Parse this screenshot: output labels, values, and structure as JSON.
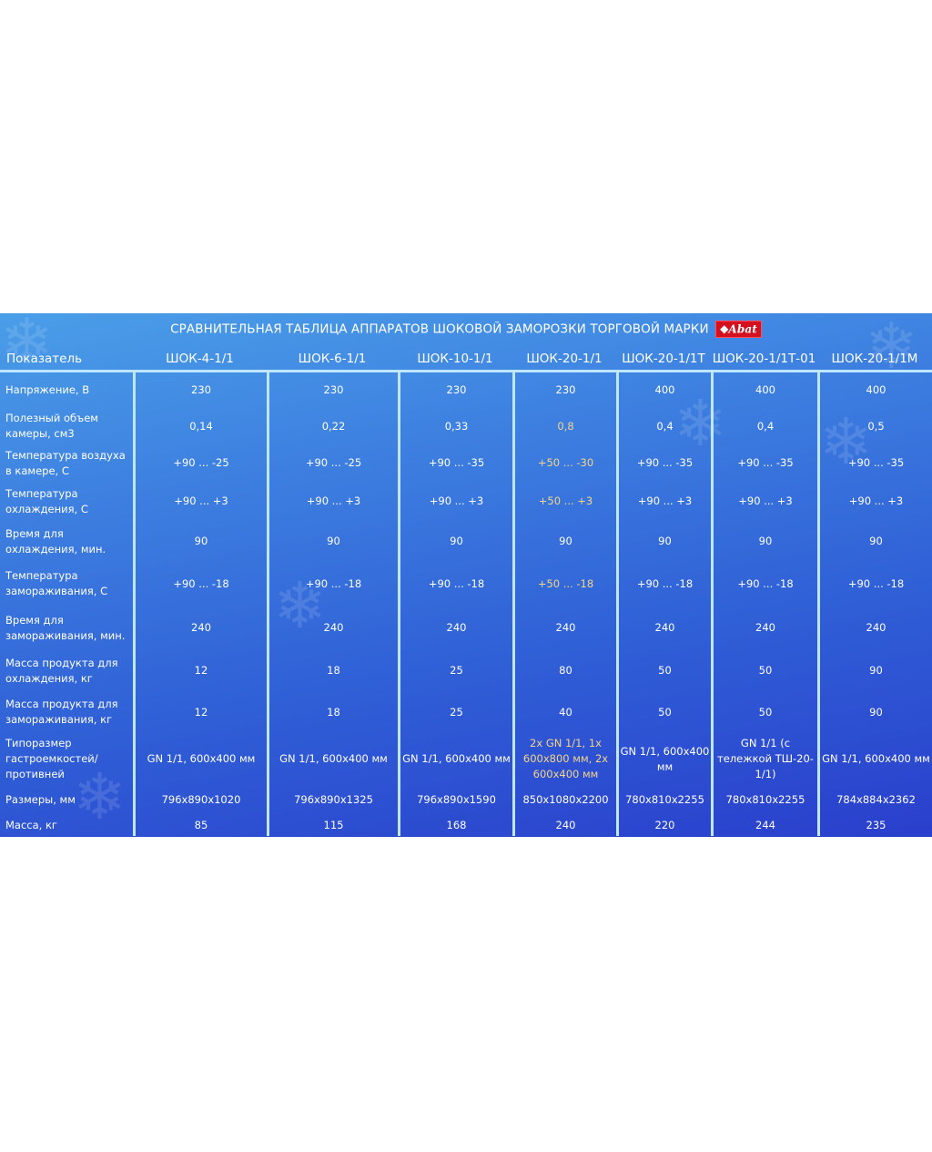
{
  "title": "СРАВНИТЕЛЬНАЯ ТАБЛИЦА АППАРАТОВ ШОКОВОЙ ЗАМОРОЗКИ ТОРГОВОЙ МАРКИ",
  "logo_text": "Abat",
  "colors": {
    "background": "#3d7fe0",
    "divider": "#bfe6ff",
    "highlight": "#f3d58a",
    "logo": "#d4101e"
  },
  "header": [
    "Показатель",
    "ШОК-4-1/1",
    "ШОК-6-1/1",
    "ШОК-10-1/1",
    "ШОК-20-1/1",
    "ШОК-20-1/1Т",
    "ШОК-20-1/1Т-01",
    "ШОК-20-1/1М"
  ],
  "rows": [
    {
      "label": "Напряжение, В",
      "values": [
        "230",
        "230",
        "230",
        "230",
        "400",
        "400",
        "400"
      ]
    },
    {
      "label": "Полезный объем камеры, см3",
      "values": [
        "0,14",
        "0,22",
        "0,33",
        "0,8",
        "0,4",
        "0,4",
        "0,5"
      ],
      "highlight": [
        3
      ]
    },
    {
      "label": "Температура воздуха в камере, С",
      "values": [
        "+90 ... -25",
        "+90 ... -25",
        "+90 ... -35",
        "+50 ... -30",
        "+90 ... -35",
        "+90 ... -35",
        "+90 ... -35"
      ],
      "highlight": [
        3
      ]
    },
    {
      "label": "Температура охлаждения, С",
      "values": [
        "+90 ... +3",
        "+90 ... +3",
        "+90 ... +3",
        "+50 ... +3",
        "+90 ... +3",
        "+90 ... +3",
        "+90 ... +3"
      ],
      "highlight": [
        3
      ]
    },
    {
      "label": "Время для охлаждения, мин.",
      "values": [
        "90",
        "90",
        "90",
        "90",
        "90",
        "90",
        "90"
      ]
    },
    {
      "label": "Температура замораживания, С",
      "values": [
        "+90 ... -18",
        "+90 ... -18",
        "+90 ... -18",
        "+50 ... -18",
        "+90 ... -18",
        "+90 ... -18",
        "+90 ... -18"
      ],
      "highlight": [
        3
      ]
    },
    {
      "label": "Время для замораживания, мин.",
      "values": [
        "240",
        "240",
        "240",
        "240",
        "240",
        "240",
        "240"
      ]
    },
    {
      "label": "Масса продукта для охлаждения, кг",
      "values": [
        "12",
        "18",
        "25",
        "80",
        "50",
        "50",
        "90"
      ]
    },
    {
      "label": "Масса продукта для замораживания, кг",
      "values": [
        "12",
        "18",
        "25",
        "40",
        "50",
        "50",
        "90"
      ]
    },
    {
      "label": "Типоразмер гастроемкостей/ противней",
      "values": [
        "GN 1/1, 600x400 мм",
        "GN 1/1, 600x400 мм",
        "GN 1/1, 600x400 мм",
        "2x GN 1/1, 1x 600x800 мм, 2x 600x400 мм",
        "GN 1/1, 600x400 мм",
        "GN 1/1 (с тележкой ТШ-20-1/1)",
        "GN 1/1, 600x400 мм"
      ],
      "highlight": [
        3
      ]
    },
    {
      "label": "Размеры, мм",
      "values": [
        "796x890x1020",
        "796x890x1325",
        "796x890x1590",
        "850x1080x2200",
        "780x810x2255",
        "780x810x2255",
        "784x884x2362"
      ]
    },
    {
      "label": "Масса, кг",
      "values": [
        "85",
        "115",
        "168",
        "240",
        "220",
        "244",
        "235"
      ]
    }
  ]
}
